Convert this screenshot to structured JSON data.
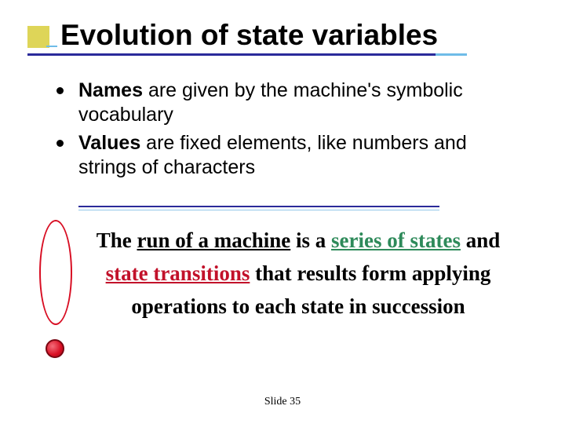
{
  "colors": {
    "title_text": "#000000",
    "title_square": "#dcd34f",
    "title_underline_main": "#2a2a9a",
    "title_underline_accent": "#6fbce8",
    "bullet_dot": "#000000",
    "hr_top": "#2a2a9a",
    "hr_bottom": "#93c7e8",
    "ellipse_border": "#d80e23",
    "dot_fill": "#d80e23",
    "green_text": "#2e8a5a",
    "red_text": "#c2112a",
    "background": "#ffffff"
  },
  "typography": {
    "title_fontsize": 37,
    "title_family": "Arial",
    "body_fontsize": 25,
    "body_family": "Arial",
    "statement_fontsize": 27,
    "statement_family": "Times New Roman",
    "footer_fontsize": 14
  },
  "title": "Evolution of state variables",
  "bullets": [
    {
      "strong": "Names",
      "rest": " are given by the machine's symbolic vocabulary"
    },
    {
      "strong": "Values",
      "rest": " are fixed elements, like numbers and strings of characters"
    }
  ],
  "statement": {
    "pre": "The ",
    "run_underline": "run of a machine",
    "mid1": " is a ",
    "series": "series of states",
    "and": " and ",
    "transitions": "state transitions",
    "tail": " that results form applying operations to each state in succession"
  },
  "footer": "Slide  35"
}
